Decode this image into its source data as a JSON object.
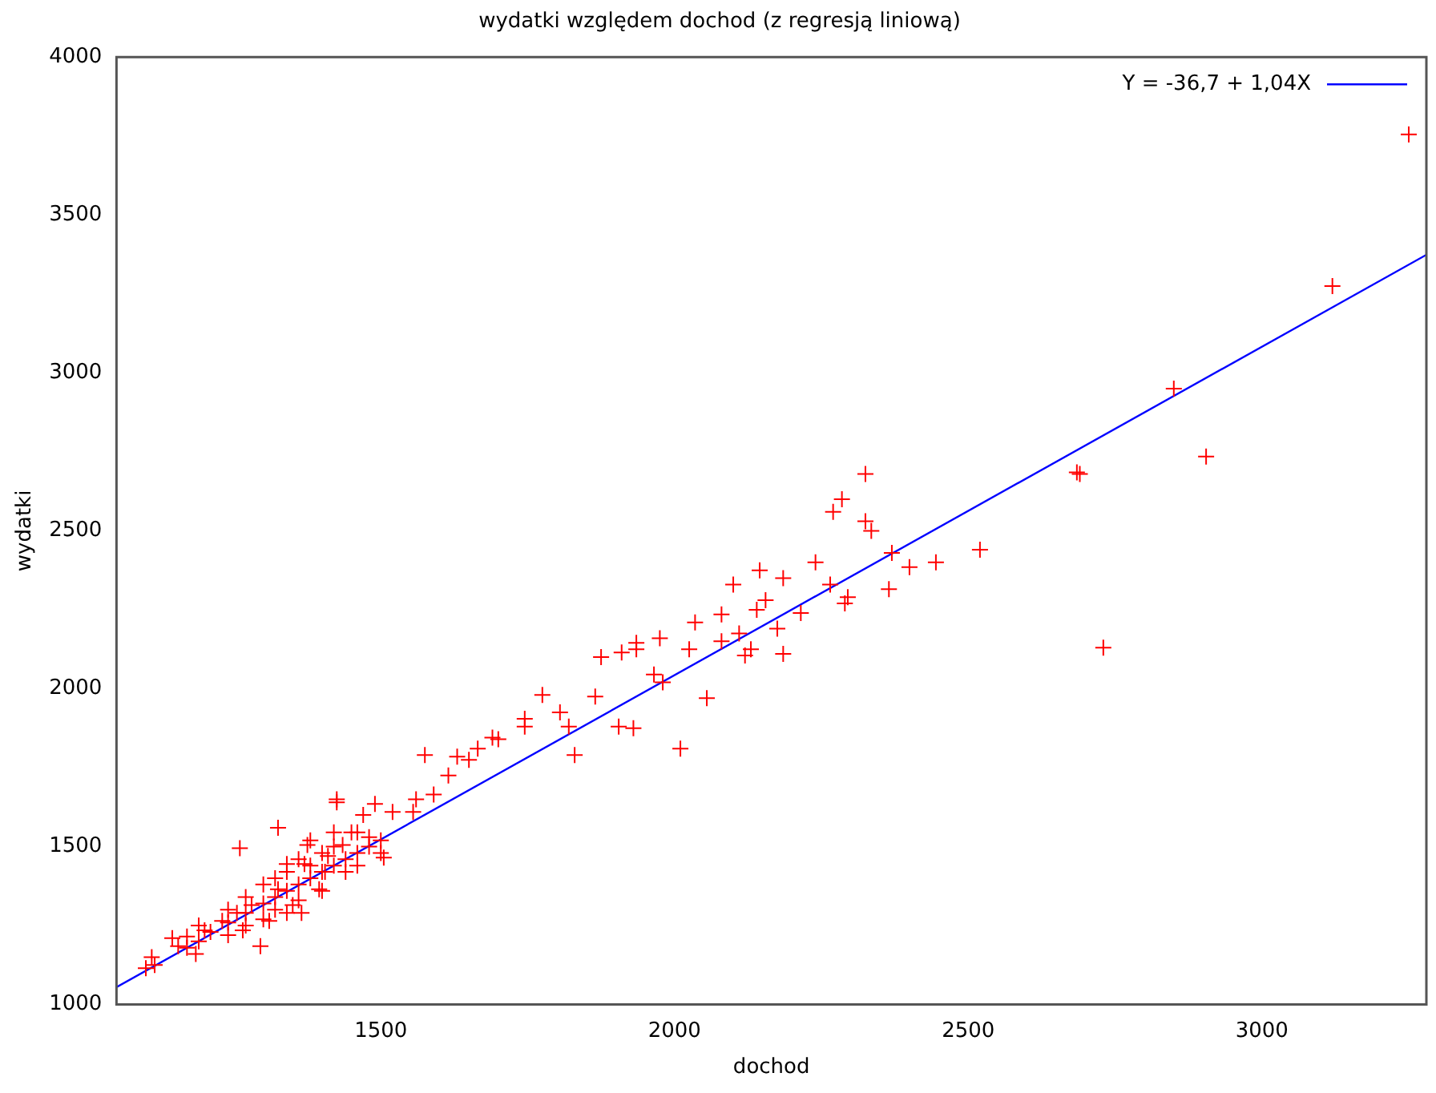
{
  "chart_data": {
    "type": "scatter",
    "title": "wydatki względem dochod (z regresją liniową)",
    "xlabel": "dochod",
    "ylabel": "wydatki",
    "xlim": [
      1050,
      3280
    ],
    "xticks": [
      1500,
      2000,
      2500,
      3000
    ],
    "ylim": [
      1000,
      4000
    ],
    "yticks": [
      1000,
      1500,
      2000,
      2500,
      3000,
      3500,
      4000
    ],
    "grid": false,
    "legend": "top right",
    "marker": "cross",
    "series": [
      {
        "color": "#ff0000",
        "x": [
          3250,
          3120,
          2850,
          2905,
          2685,
          2690,
          2730,
          2520,
          2445,
          2400,
          2370,
          2365,
          2325,
          2325,
          2335,
          2285,
          2270,
          2295,
          2290,
          2265,
          2240,
          2185,
          2215,
          2185,
          2175,
          2145,
          2140,
          2110,
          2080,
          2130,
          2155,
          2120,
          2100,
          2080,
          2035,
          2025,
          2055,
          2010,
          1975,
          1965,
          1980,
          1935,
          1935,
          1910,
          1875,
          1905,
          1930,
          1865,
          1830,
          1820,
          1805,
          1775,
          1745,
          1745,
          1690,
          1700,
          1665,
          1630,
          1650,
          1615,
          1575,
          1590,
          1560,
          1555,
          1520,
          1490,
          1470,
          1450,
          1425,
          1420,
          1435,
          1410,
          1380,
          1375,
          1340,
          1325,
          1100,
          1115,
          1110,
          1155,
          1145,
          1185,
          1200,
          1230,
          1260,
          1265,
          1280,
          1295,
          1325,
          1350,
          1370,
          1395,
          1405,
          1425,
          1460,
          1505,
          1365,
          1310,
          1255,
          1170,
          1170,
          1190,
          1190,
          1210,
          1240,
          1240,
          1240,
          1270,
          1270,
          1270,
          1300,
          1300,
          1300,
          1320,
          1320,
          1320,
          1340,
          1340,
          1340,
          1360,
          1360,
          1360,
          1380,
          1380,
          1400,
          1400,
          1400,
          1420,
          1420,
          1440,
          1440,
          1460,
          1460,
          1480,
          1480,
          1500,
          1500
        ],
        "values": [
          3755,
          3275,
          2950,
          2735,
          2685,
          2680,
          2130,
          2440,
          2400,
          2385,
          2430,
          2315,
          2680,
          2530,
          2500,
          2600,
          2560,
          2290,
          2270,
          2330,
          2400,
          2350,
          2240,
          2110,
          2190,
          2375,
          2250,
          2175,
          2150,
          2125,
          2280,
          2105,
          2330,
          2235,
          2210,
          2125,
          1970,
          1810,
          2160,
          2045,
          2020,
          2125,
          2145,
          2115,
          2100,
          1880,
          1875,
          1975,
          1790,
          1880,
          1925,
          1980,
          1880,
          1905,
          1845,
          1840,
          1810,
          1785,
          1775,
          1725,
          1790,
          1665,
          1650,
          1610,
          1610,
          1635,
          1600,
          1545,
          1640,
          1545,
          1505,
          1470,
          1520,
          1505,
          1445,
          1560,
          1115,
          1125,
          1150,
          1185,
          1210,
          1160,
          1235,
          1265,
          1495,
          1235,
          1315,
          1185,
          1365,
          1315,
          1445,
          1365,
          1420,
          1650,
          1545,
          1465,
          1290,
          1265,
          1290,
          1180,
          1215,
          1200,
          1250,
          1230,
          1260,
          1300,
          1220,
          1290,
          1340,
          1250,
          1320,
          1380,
          1270,
          1340,
          1400,
          1300,
          1360,
          1290,
          1420,
          1380,
          1330,
          1460,
          1400,
          1440,
          1420,
          1480,
          1360,
          1440,
          1500,
          1460,
          1420,
          1480,
          1440,
          1500,
          1530,
          1520,
          1480
        ]
      },
      {
        "type": "line",
        "name": "Y = -36,7 + 1,04X",
        "color": "#0000ff",
        "line_style": "solid",
        "marker": "none",
        "x": [
          1050,
          3280
        ],
        "values": [
          1055,
          3374
        ]
      }
    ]
  }
}
